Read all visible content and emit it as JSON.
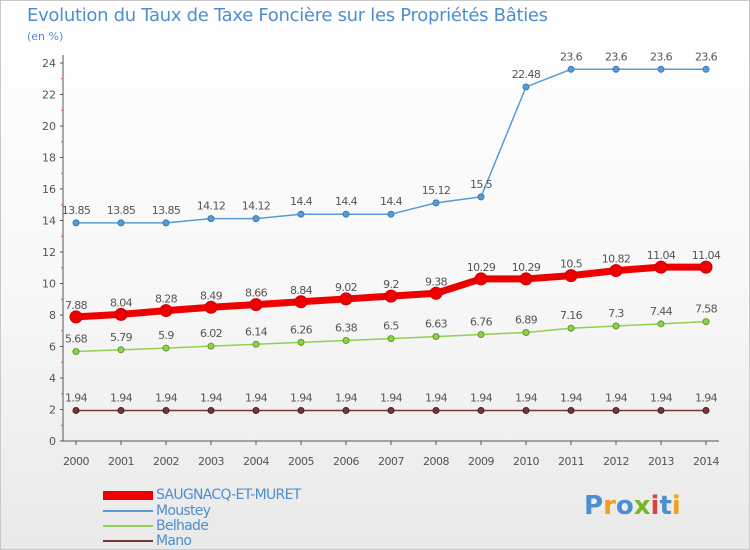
{
  "header": {
    "title": "Evolution du Taux de Taxe Foncière sur les Propriétés Bâties",
    "unit": "(en %)"
  },
  "logo": {
    "text": "Proxiti",
    "letter_colors": [
      "#4e8ed0",
      "#f0a020",
      "#4e8ed0",
      "#78b828",
      "#e04040",
      "#4e8ed0",
      "#f0a020"
    ]
  },
  "chart_data": {
    "type": "line",
    "title": "Evolution du Taux de Taxe Foncière sur les Propriétés Bâties",
    "ylabel": "(en %)",
    "xlabel": "",
    "ylim": [
      0,
      24
    ],
    "yticks": [
      0,
      2,
      4,
      6,
      8,
      10,
      12,
      14,
      16,
      18,
      20,
      22,
      24
    ],
    "grid": false,
    "legend_position": "bottom-left",
    "x": [
      2000,
      2001,
      2002,
      2003,
      2004,
      2005,
      2006,
      2007,
      2008,
      2009,
      2010,
      2011,
      2012,
      2013,
      2014
    ],
    "series": [
      {
        "name": "SAUGNACQ-ET-MURET",
        "color": "#ee0000",
        "values": [
          7.88,
          8.04,
          8.28,
          8.49,
          8.66,
          8.84,
          9.02,
          9.2,
          9.38,
          10.29,
          10.29,
          10.5,
          10.82,
          11.04,
          11.04
        ],
        "labels": [
          "7.88",
          "8.04",
          "8.28",
          "8.49",
          "8.66",
          "8.84",
          "9.02",
          "9.2",
          "9.38",
          "10.29",
          "10.29",
          "10.5",
          "10.82",
          "11.04",
          "11.04"
        ]
      },
      {
        "name": "Moustey",
        "color": "#5b9bd5",
        "values": [
          13.85,
          13.85,
          13.85,
          14.12,
          14.12,
          14.4,
          14.4,
          14.4,
          15.12,
          15.5,
          22.48,
          23.6,
          23.6,
          23.6,
          23.6
        ],
        "labels": [
          "13.85",
          "13.85",
          "13.85",
          "14.12",
          "14.12",
          "14.4",
          "14.4",
          "14.4",
          "15.12",
          "15.5",
          "22.48",
          "23.6",
          "23.6",
          "23.6",
          "23.6"
        ]
      },
      {
        "name": "Belhade",
        "color": "#8fd14f",
        "values": [
          5.68,
          5.79,
          5.9,
          6.02,
          6.14,
          6.26,
          6.38,
          6.5,
          6.63,
          6.76,
          6.89,
          7.16,
          7.3,
          7.44,
          7.58
        ],
        "labels": [
          "5.68",
          "5.79",
          "5.9",
          "6.02",
          "6.14",
          "6.26",
          "6.38",
          "6.5",
          "6.63",
          "6.76",
          "6.89",
          "7.16",
          "7.3",
          "7.44",
          "7.58"
        ]
      },
      {
        "name": "Mano",
        "color": "#7a3535",
        "values": [
          1.94,
          1.94,
          1.94,
          1.94,
          1.94,
          1.94,
          1.94,
          1.94,
          1.94,
          1.94,
          1.94,
          1.94,
          1.94,
          1.94,
          1.94
        ],
        "labels": [
          "1.94",
          "1.94",
          "1.94",
          "1.94",
          "1.94",
          "1.94",
          "1.94",
          "1.94",
          "1.94",
          "1.94",
          "1.94",
          "1.94",
          "1.94",
          "1.94",
          "1.94"
        ]
      }
    ]
  }
}
